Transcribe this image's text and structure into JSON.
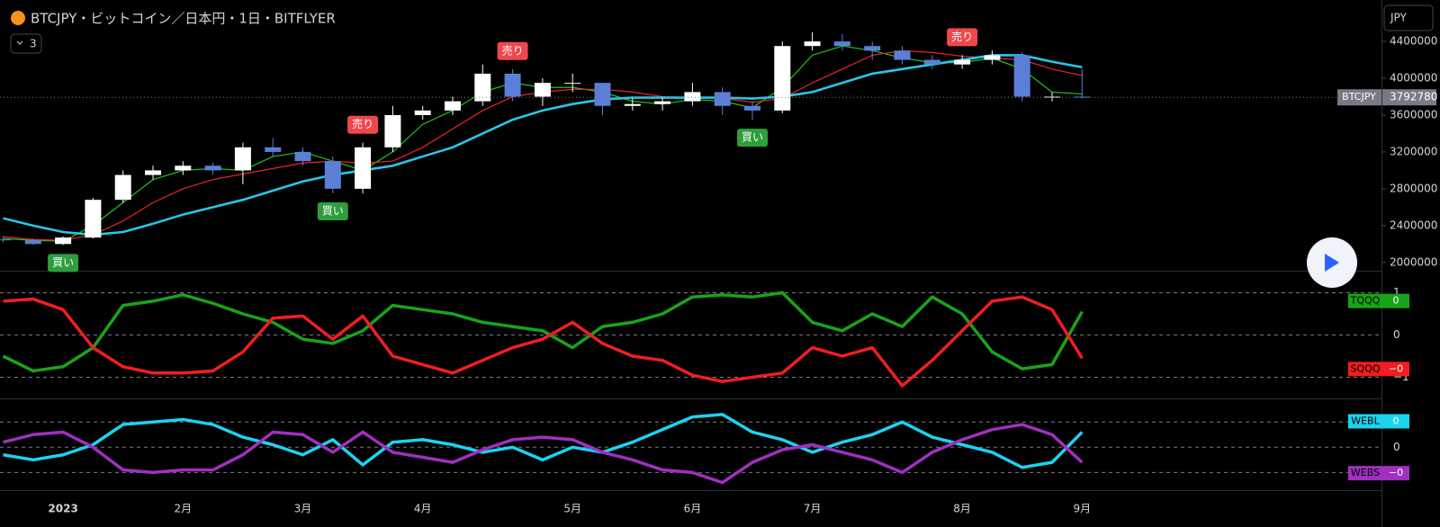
{
  "chart_data": [
    {
      "type": "candlestick",
      "title": "BTCJPY・ビットコイン／日本円・1日・BITFLYER",
      "symbol": "BTCJPY",
      "categories": [
        null,
        null,
        "2023",
        null,
        null,
        null,
        "2月",
        null,
        null,
        null,
        "3月",
        null,
        null,
        null,
        "4月",
        null,
        null,
        null,
        null,
        "5月",
        null,
        null,
        null,
        "6月",
        null,
        null,
        null,
        "7月",
        null,
        null,
        null,
        null,
        "8月",
        null,
        null,
        null,
        "9月"
      ],
      "open": [
        2250000,
        2240000,
        2200000,
        2270000,
        2680000,
        2950000,
        3000000,
        3050000,
        3000000,
        3250000,
        3200000,
        3100000,
        2800000,
        3250000,
        3600000,
        3650000,
        3750000,
        4050000,
        3800000,
        3950000,
        3950000,
        3700000,
        3720000,
        3750000,
        3850000,
        3700000,
        3650000,
        4350000,
        4400000,
        4350000,
        4300000,
        4200000,
        4150000,
        4200000,
        4250000,
        3800000,
        3800000
      ],
      "high": [
        2280000,
        2260000,
        2280000,
        2700000,
        3000000,
        3050000,
        3100000,
        3080000,
        3300000,
        3350000,
        3250000,
        3150000,
        3300000,
        3700000,
        3700000,
        3800000,
        4150000,
        4100000,
        4000000,
        4050000,
        3950000,
        3780000,
        3800000,
        3950000,
        3900000,
        3750000,
        4400000,
        4500000,
        4480000,
        4400000,
        4350000,
        4250000,
        4250000,
        4300000,
        4280000,
        3850000,
        4100000
      ],
      "low": [
        2220000,
        2190000,
        2190000,
        2260000,
        2650000,
        2900000,
        2950000,
        2950000,
        2850000,
        3150000,
        3050000,
        2750000,
        2750000,
        3200000,
        3550000,
        3600000,
        3700000,
        3750000,
        3700000,
        3850000,
        3600000,
        3650000,
        3650000,
        3700000,
        3600000,
        3550000,
        3620000,
        4300000,
        4300000,
        4200000,
        4150000,
        4100000,
        4100000,
        4150000,
        3750000,
        3750000,
        3780000
      ],
      "close": [
        2240000,
        2200000,
        2270000,
        2680000,
        2950000,
        3000000,
        3050000,
        3000000,
        3250000,
        3200000,
        3100000,
        2800000,
        3250000,
        3600000,
        3650000,
        3750000,
        4050000,
        3800000,
        3950000,
        3950000,
        3700000,
        3720000,
        3750000,
        3850000,
        3700000,
        3650000,
        4350000,
        4400000,
        4350000,
        4300000,
        4200000,
        4150000,
        4200000,
        4250000,
        3800000,
        3800000,
        3792780
      ],
      "up_color": "#ffffff",
      "down_color": "#5b7fd6",
      "lines": [
        {
          "color": "#22c322",
          "width": 1.2,
          "values": [
            2260000,
            2240000,
            2230000,
            2400000,
            2650000,
            2900000,
            3000000,
            3020000,
            3000000,
            3150000,
            3200000,
            3100000,
            3000000,
            3200000,
            3500000,
            3650000,
            3850000,
            3950000,
            3900000,
            3900000,
            3850000,
            3750000,
            3720000,
            3770000,
            3750000,
            3680000,
            3900000,
            4250000,
            4350000,
            4300000,
            4220000,
            4170000,
            4170000,
            4220000,
            4100000,
            3850000,
            3830000
          ]
        },
        {
          "color": "#e8252b",
          "width": 1.2,
          "values": [
            2280000,
            2250000,
            2240000,
            2300000,
            2450000,
            2650000,
            2800000,
            2900000,
            2960000,
            3020000,
            3080000,
            3100000,
            3080000,
            3100000,
            3250000,
            3450000,
            3650000,
            3800000,
            3850000,
            3880000,
            3880000,
            3850000,
            3800000,
            3790000,
            3780000,
            3740000,
            3780000,
            3950000,
            4100000,
            4250000,
            4300000,
            4280000,
            4240000,
            4220000,
            4200000,
            4100000,
            4030000
          ]
        },
        {
          "color": "#29c6ea",
          "width": 2.6,
          "values": [
            2480000,
            2400000,
            2330000,
            2300000,
            2330000,
            2420000,
            2520000,
            2600000,
            2680000,
            2780000,
            2880000,
            2950000,
            3000000,
            3050000,
            3150000,
            3250000,
            3400000,
            3550000,
            3650000,
            3720000,
            3770000,
            3790000,
            3790000,
            3790000,
            3790000,
            3780000,
            3800000,
            3850000,
            3950000,
            4050000,
            4100000,
            4150000,
            4200000,
            4250000,
            4250000,
            4180000,
            4120000
          ]
        }
      ],
      "signals": [
        null,
        null,
        {
          "text": "買い",
          "color": "#2e9d3e",
          "place": "below"
        },
        null,
        null,
        null,
        null,
        null,
        null,
        null,
        null,
        {
          "text": "買い",
          "color": "#2e9d3e",
          "place": "below"
        },
        {
          "text": "売り",
          "color": "#f0474c",
          "place": "above"
        },
        null,
        null,
        null,
        null,
        {
          "text": "売り",
          "color": "#f0474c",
          "place": "above"
        },
        null,
        null,
        null,
        null,
        null,
        null,
        null,
        {
          "text": "買い",
          "color": "#2e9d3e",
          "place": "below"
        },
        null,
        null,
        null,
        null,
        null,
        null,
        {
          "text": "売り",
          "color": "#f0474c",
          "place": "above"
        },
        null,
        null,
        null,
        null
      ],
      "ylim": [
        1920000,
        4850000
      ],
      "yticks": [
        2000000,
        2400000,
        2800000,
        3200000,
        3600000,
        4000000,
        4400000
      ]
    },
    {
      "type": "line",
      "ylim": [
        -1.5,
        1.5
      ],
      "yticks": [
        {
          "value": 1,
          "label": "1"
        },
        0,
        {
          "value": -1,
          "label": "−1"
        }
      ],
      "series": [
        {
          "name": "TQQQ",
          "color": "#19a319",
          "tag": "0",
          "values": [
            -0.5,
            -0.85,
            -0.75,
            -0.3,
            0.7,
            0.8,
            0.95,
            0.75,
            0.5,
            0.3,
            -0.1,
            -0.2,
            0.1,
            0.7,
            0.6,
            0.5,
            0.3,
            0.2,
            0.1,
            -0.3,
            0.2,
            0.3,
            0.5,
            0.9,
            0.95,
            0.9,
            1.0,
            0.3,
            0.1,
            0.5,
            0.2,
            0.9,
            0.5,
            -0.4,
            -0.8,
            -0.7,
            0.55
          ]
        },
        {
          "name": "SQQQ",
          "color": "#f01e1e",
          "tag": "−0",
          "values": [
            0.8,
            0.85,
            0.6,
            -0.3,
            -0.75,
            -0.9,
            -0.9,
            -0.85,
            -0.4,
            0.4,
            0.45,
            -0.1,
            0.45,
            -0.5,
            -0.7,
            -0.9,
            -0.6,
            -0.3,
            -0.1,
            0.3,
            -0.2,
            -0.5,
            -0.6,
            -0.95,
            -1.1,
            -1.0,
            -0.9,
            -0.3,
            -0.5,
            -0.3,
            -1.2,
            -0.6,
            0.1,
            0.8,
            0.9,
            0.6,
            -0.55
          ]
        }
      ]
    },
    {
      "type": "line",
      "ylim": [
        -1.7,
        1.9
      ],
      "yticks": [
        0
      ],
      "dashed_levels": [
        1,
        -1
      ],
      "series": [
        {
          "name": "WEBL",
          "color": "#1cd3f0",
          "tag": "0",
          "values": [
            -0.3,
            -0.5,
            -0.3,
            0.1,
            0.9,
            1.0,
            1.1,
            0.9,
            0.4,
            0.1,
            -0.3,
            0.3,
            -0.7,
            0.2,
            0.3,
            0.1,
            -0.2,
            0.0,
            -0.5,
            0.0,
            -0.2,
            0.2,
            0.7,
            1.2,
            1.3,
            0.6,
            0.3,
            -0.2,
            0.2,
            0.5,
            1.0,
            0.4,
            0.1,
            -0.2,
            -0.8,
            -0.6,
            0.6
          ]
        },
        {
          "name": "WEBS",
          "color": "#a12fc0",
          "tag": "−0",
          "values": [
            0.2,
            0.5,
            0.6,
            0.0,
            -0.9,
            -1.0,
            -0.9,
            -0.9,
            -0.3,
            0.6,
            0.5,
            -0.2,
            0.6,
            -0.2,
            -0.4,
            -0.6,
            -0.1,
            0.3,
            0.4,
            0.3,
            -0.2,
            -0.5,
            -0.9,
            -1.0,
            -1.4,
            -0.6,
            -0.1,
            0.1,
            -0.2,
            -0.5,
            -1.0,
            -0.2,
            0.3,
            0.7,
            0.9,
            0.5,
            -0.6
          ]
        }
      ]
    }
  ],
  "ui": {
    "currency": "JPY",
    "collapsed_count": "3"
  }
}
